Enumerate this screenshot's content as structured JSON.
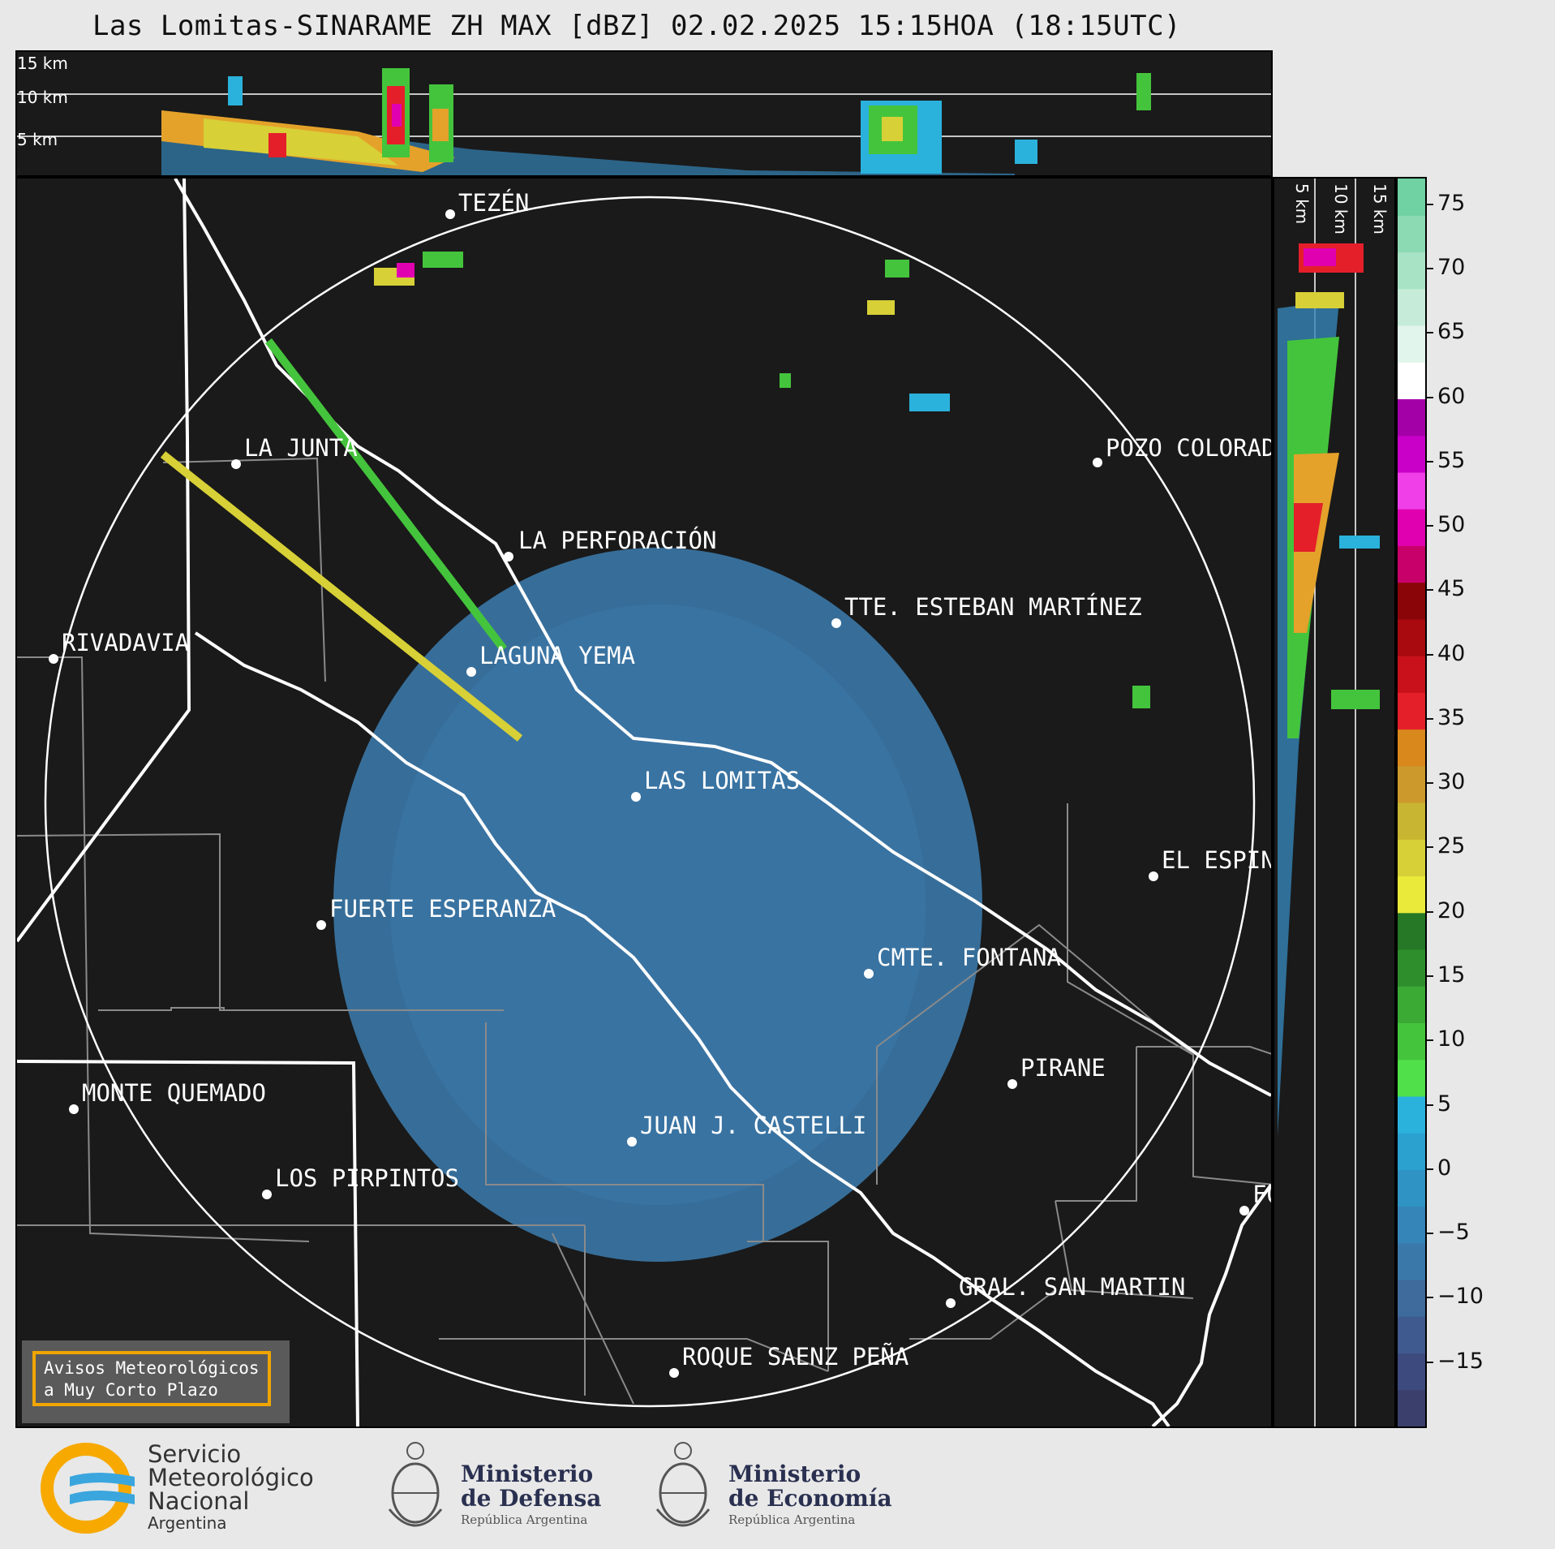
{
  "title": "Las Lomitas-SINARAME ZH MAX [dBZ] 02.02.2025 15:15HOA (18:15UTC)",
  "top_strip": {
    "km_labels": [
      "15 km",
      "10 km",
      "5 km"
    ]
  },
  "side_strip": {
    "km_labels": [
      "5 km",
      "10 km",
      "15 km"
    ]
  },
  "colorbar": {
    "unit": "dBZ",
    "ticks": [
      "75",
      "70",
      "65",
      "60",
      "55",
      "50",
      "45",
      "40",
      "35",
      "30",
      "25",
      "20",
      "15",
      "10",
      "5",
      "0",
      "−5",
      "−10",
      "−15"
    ],
    "range": [
      -20,
      77
    ],
    "colors": [
      "#3a3f6b",
      "#3d4a7e",
      "#3f5a8e",
      "#3e6a9c",
      "#3b78aa",
      "#3585b8",
      "#2f93c4",
      "#2ba1d0",
      "#2bb2dc",
      "#4fe04a",
      "#44c43c",
      "#3aaa34",
      "#2f8e2c",
      "#267826",
      "#e9ea3a",
      "#d7d037",
      "#c8b532",
      "#cc9a2c",
      "#d9881c",
      "#e41f2a",
      "#c8111a",
      "#a80a10",
      "#8a0508",
      "#c7006a",
      "#e000b0",
      "#f03ee8",
      "#c800c8",
      "#a400a8",
      "#ffffff",
      "#e2f5ec",
      "#c6ecd9",
      "#a8e3c6",
      "#8cdab4",
      "#70d1a2"
    ]
  },
  "cities": [
    {
      "name": "TEZÉN"
    },
    {
      "name": "LA JUNTA"
    },
    {
      "name": "POZO COLORADO"
    },
    {
      "name": "LA PERFORACIÓN"
    },
    {
      "name": "TTE. ESTEBAN MARTÍNEZ"
    },
    {
      "name": "RIVADAVIA"
    },
    {
      "name": "LAGUNA YEMA"
    },
    {
      "name": "LAS LOMITAS"
    },
    {
      "name": "EL ESPINILLO"
    },
    {
      "name": "FUERTE ESPERANZA"
    },
    {
      "name": "CMTE. FONTANA"
    },
    {
      "name": "PIRANE"
    },
    {
      "name": "MONTE QUEMADO"
    },
    {
      "name": "JUAN J. CASTELLI"
    },
    {
      "name": "LOS PIRPINTOS"
    },
    {
      "name": "GRAL. SAN MARTIN"
    },
    {
      "name": "ROQUE SAENZ PEÑA"
    },
    {
      "name": "FORMOSA"
    }
  ],
  "avisos": {
    "line1": "Avisos Meteorológicos",
    "line2": "a Muy Corto Plazo"
  },
  "footer": {
    "smn": {
      "line1": "Servicio",
      "line2": "Meteorológico",
      "line3": "Nacional",
      "line4": "Argentina"
    },
    "defensa": {
      "line1": "Ministerio",
      "line2": "de Defensa",
      "line3": "República Argentina"
    },
    "economia": {
      "line1": "Ministerio",
      "line2": "de Economía",
      "line3": "República Argentina"
    }
  }
}
